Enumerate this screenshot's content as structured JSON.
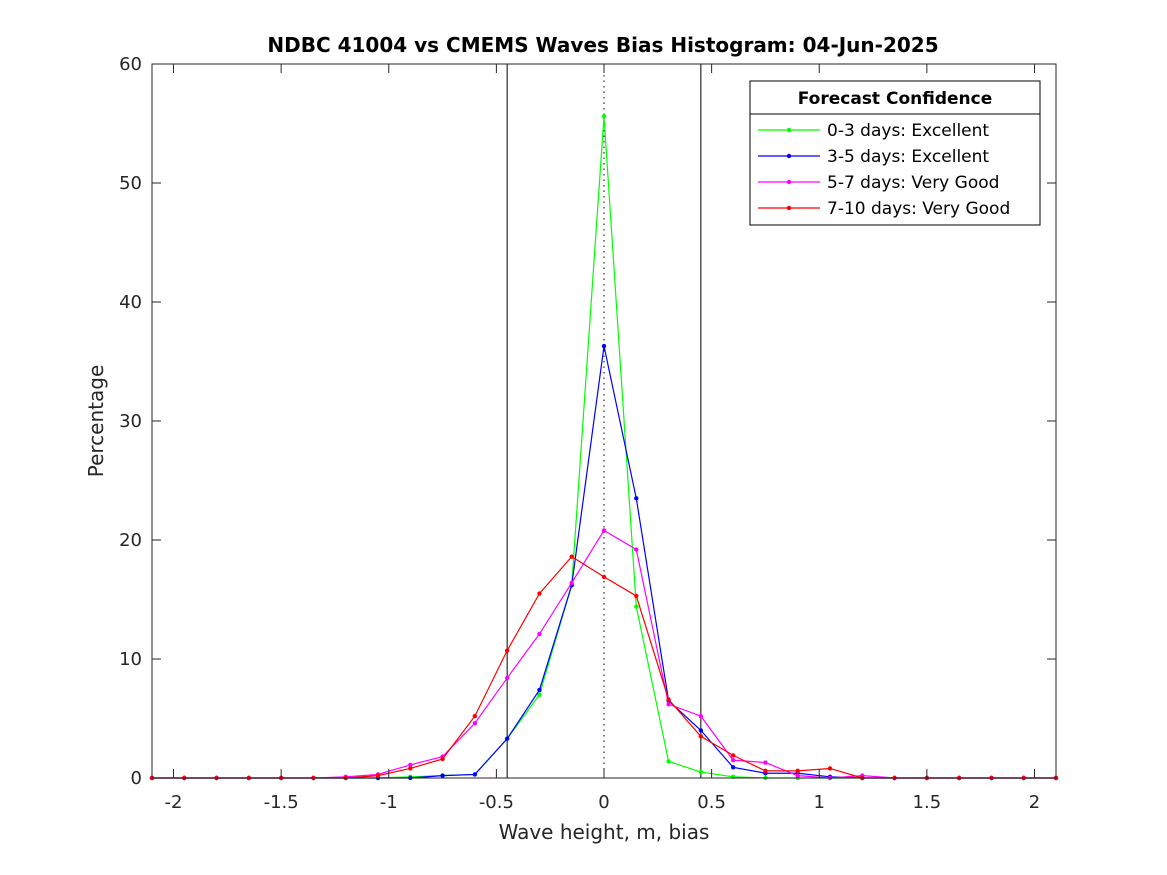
{
  "chart_data": {
    "type": "line",
    "title": "NDBC 41004 vs CMEMS Waves Bias Histogram: 04-Jun-2025",
    "xlabel": "Wave height, m, bias",
    "ylabel": "Percentage",
    "xlim": [
      -2.1,
      2.1
    ],
    "ylim": [
      0,
      60
    ],
    "xticks": [
      -2,
      -1.5,
      -1,
      -0.5,
      0,
      0.5,
      1,
      1.5,
      2
    ],
    "xtick_labels": [
      "-2",
      "-1.5",
      "-1",
      "-0.5",
      "0",
      "0.5",
      "1",
      "1.5",
      "2"
    ],
    "yticks": [
      0,
      10,
      20,
      30,
      40,
      50,
      60
    ],
    "ytick_labels": [
      "0",
      "10",
      "20",
      "30",
      "40",
      "50",
      "60"
    ],
    "grid": false,
    "legend": {
      "title": "Forecast Confidence",
      "placement": "top-right"
    },
    "reference_lines": {
      "solid_x": [
        -0.45,
        0.45
      ],
      "dotted_x": [
        0
      ],
      "color": "#000000"
    },
    "x": [
      -2.1,
      -1.95,
      -1.8,
      -1.65,
      -1.5,
      -1.35,
      -1.2,
      -1.05,
      -0.9,
      -0.75,
      -0.6,
      -0.45,
      -0.3,
      -0.15,
      0,
      0.15,
      0.3,
      0.45,
      0.6,
      0.75,
      0.9,
      1.05,
      1.2,
      1.35,
      1.5,
      1.65,
      1.8,
      1.95,
      2.1
    ],
    "series": [
      {
        "name": "0-3 days: Excellent",
        "color": "#00ff00",
        "values": [
          0,
          0,
          0,
          0,
          0,
          0,
          0,
          0,
          0.1,
          0.2,
          0.3,
          3.3,
          7.0,
          16.2,
          55.6,
          14.4,
          1.4,
          0.5,
          0.1,
          0,
          0,
          0,
          0,
          0,
          0,
          0,
          0,
          0,
          0
        ]
      },
      {
        "name": "3-5 days: Excellent",
        "color": "#0000ff",
        "values": [
          0,
          0,
          0,
          0,
          0,
          0,
          0,
          0,
          0,
          0.2,
          0.3,
          3.3,
          7.4,
          16.2,
          36.3,
          23.5,
          6.5,
          4.0,
          0.9,
          0.4,
          0.4,
          0.1,
          0,
          0,
          0,
          0,
          0,
          0,
          0
        ]
      },
      {
        "name": "5-7 days: Very Good",
        "color": "#ff00ff",
        "values": [
          0,
          0,
          0,
          0,
          0,
          0,
          0.1,
          0.3,
          1.1,
          1.8,
          4.6,
          8.4,
          12.1,
          16.4,
          20.8,
          19.2,
          6.2,
          5.2,
          1.5,
          1.3,
          0.2,
          0,
          0.2,
          0,
          0,
          0,
          0,
          0,
          0
        ]
      },
      {
        "name": "7-10 days: Very Good",
        "color": "#ff0000",
        "values": [
          0,
          0,
          0,
          0,
          0,
          0,
          0,
          0.2,
          0.8,
          1.6,
          5.2,
          10.7,
          15.5,
          18.6,
          16.9,
          15.3,
          6.6,
          3.5,
          1.9,
          0.6,
          0.6,
          0.8,
          0,
          0,
          0,
          0,
          0,
          0,
          0
        ]
      }
    ]
  }
}
